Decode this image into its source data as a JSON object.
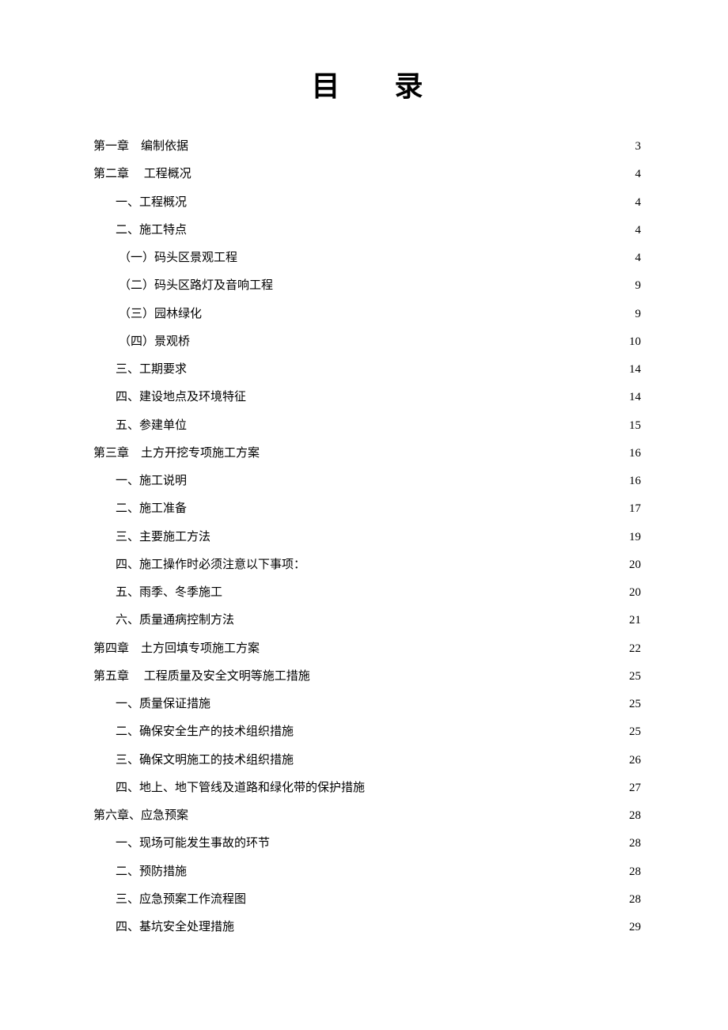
{
  "title": "目 录",
  "entries": [
    {
      "level": 0,
      "label": "第一章　编制依据",
      "page": "3"
    },
    {
      "level": 0,
      "label": "第二章　 工程概况",
      "page": "4"
    },
    {
      "level": 1,
      "label": "一、工程概况",
      "page": "4"
    },
    {
      "level": 1,
      "label": "二、施工特点",
      "page": "4"
    },
    {
      "level": 2,
      "label": "（一）码头区景观工程",
      "page": "4"
    },
    {
      "level": 2,
      "label": "（二）码头区路灯及音响工程",
      "page": "9"
    },
    {
      "level": 2,
      "label": "（三）园林绿化",
      "page": "9"
    },
    {
      "level": 2,
      "label": "（四）景观桥",
      "page": "10"
    },
    {
      "level": 1,
      "label": "三、工期要求",
      "page": "14"
    },
    {
      "level": 1,
      "label": "四、建设地点及环境特征",
      "page": "14"
    },
    {
      "level": 1,
      "label": "五、参建单位",
      "page": "15"
    },
    {
      "level": 0,
      "label": "第三章　土方开挖专项施工方案",
      "page": "16"
    },
    {
      "level": 1,
      "label": "一、施工说明",
      "page": "16"
    },
    {
      "level": 1,
      "label": "二、施工准备",
      "page": "17"
    },
    {
      "level": 1,
      "label": "三、主要施工方法",
      "page": "19"
    },
    {
      "level": 1,
      "label": "四、施工操作时必须注意以下事项：",
      "page": "20"
    },
    {
      "level": 1,
      "label": "五、雨季、冬季施工",
      "page": "20"
    },
    {
      "level": 1,
      "label": "六、质量通病控制方法",
      "page": "21"
    },
    {
      "level": 0,
      "label": "第四章　土方回填专项施工方案",
      "page": "22"
    },
    {
      "level": 0,
      "label": "第五章　 工程质量及安全文明等施工措施",
      "page": "25"
    },
    {
      "level": 1,
      "label": "一、质量保证措施",
      "page": "25"
    },
    {
      "level": 1,
      "label": "二、确保安全生产的技术组织措施",
      "page": "25"
    },
    {
      "level": 1,
      "label": "三、确保文明施工的技术组织措施",
      "page": "26"
    },
    {
      "level": 1,
      "label": "四、地上、地下管线及道路和绿化带的保护措施",
      "page": "27"
    },
    {
      "level": 0,
      "label": "第六章、应急预案",
      "page": "28"
    },
    {
      "level": 1,
      "label": "一、现场可能发生事故的环节",
      "page": "28"
    },
    {
      "level": 1,
      "label": "二、预防措施",
      "page": "28"
    },
    {
      "level": 1,
      "label": "三、应急预案工作流程图",
      "page": "28"
    },
    {
      "level": 1,
      "label": "四、基坑安全处理措施",
      "page": "29"
    }
  ],
  "style": {
    "background_color": "#ffffff",
    "text_color": "#000000",
    "title_fontsize": 36,
    "entry_fontsize": 15,
    "line_height": 2.35,
    "indent_level_0": 0,
    "indent_level_1": 28,
    "indent_level_2": 32
  }
}
